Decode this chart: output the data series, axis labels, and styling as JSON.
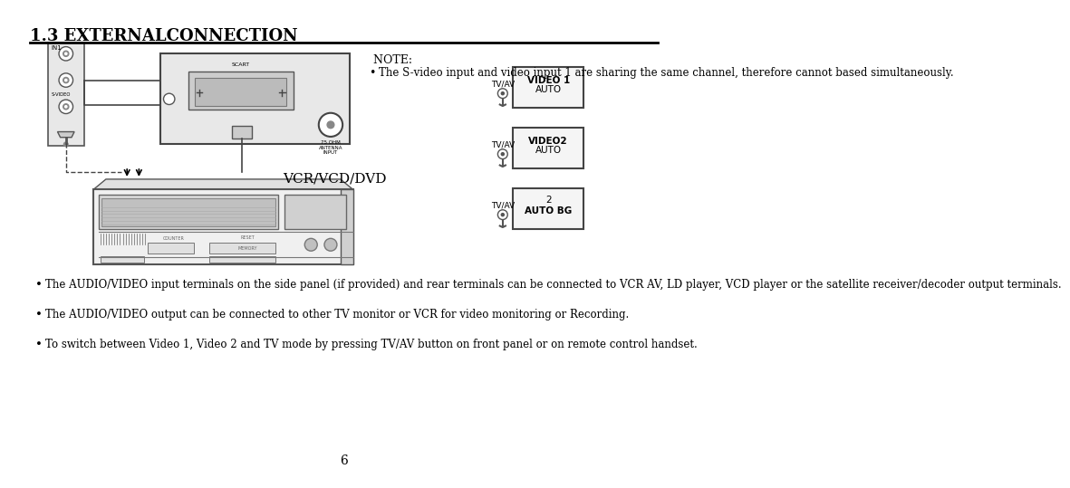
{
  "title": "1.3 EXTERNALCONNECTION",
  "note_text": " NOTE:",
  "note_bullet": "The S-video input and video input 1 are sharing the same channel, therefore cannot based simultaneously.",
  "bullet2": "The AUDIO/VIDEO input terminals on the side panel (if provided) and rear terminals can be connected to VCR AV, LD player, VCD player or the satellite receiver/decoder output terminals.",
  "bullet3": "The AUDIO/VIDEO output can be connected to other TV monitor or VCR for video monitoring or Recording.",
  "bullet4": "To switch between Video 1, Video 2 and TV mode by pressing TV/AV button on front panel or on remote control handset.",
  "vcr_label": "VCR/VCD/DVD",
  "page_number": "6",
  "bg_color": "#ffffff",
  "text_color": "#000000"
}
